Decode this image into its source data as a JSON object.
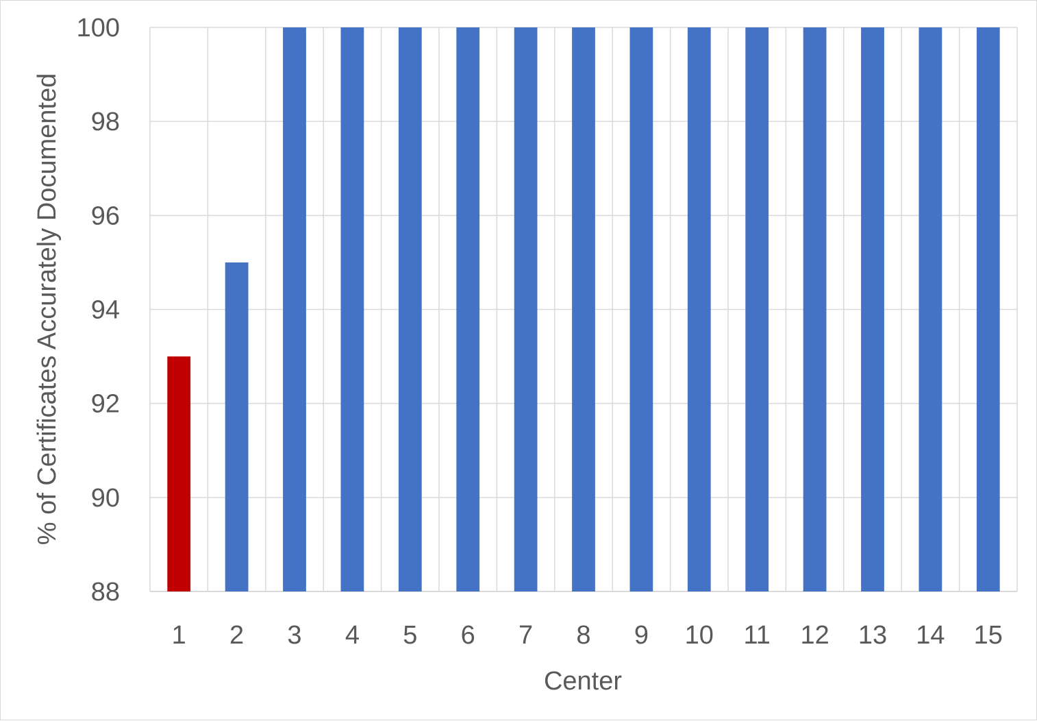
{
  "chart_data": {
    "type": "bar",
    "title": "",
    "xlabel": "Center",
    "ylabel": "% of Certificates Accurately Documented",
    "categories": [
      "1",
      "2",
      "3",
      "4",
      "5",
      "6",
      "7",
      "8",
      "9",
      "10",
      "11",
      "12",
      "13",
      "14",
      "15"
    ],
    "values": [
      93,
      95,
      100,
      100,
      100,
      100,
      100,
      100,
      100,
      100,
      100,
      100,
      100,
      100,
      100
    ],
    "bar_colors": [
      "#C00000",
      "#4472C4",
      "#4472C4",
      "#4472C4",
      "#4472C4",
      "#4472C4",
      "#4472C4",
      "#4472C4",
      "#4472C4",
      "#4472C4",
      "#4472C4",
      "#4472C4",
      "#4472C4",
      "#4472C4",
      "#4472C4"
    ],
    "ylim": [
      88,
      100
    ],
    "yticks": [
      "88",
      "90",
      "92",
      "94",
      "96",
      "98",
      "100"
    ],
    "grid": true,
    "legend": "none"
  },
  "colors": {
    "highlight": "#C00000",
    "bar": "#4472C4",
    "grid": "#D9D9D9",
    "text": "#595959"
  }
}
